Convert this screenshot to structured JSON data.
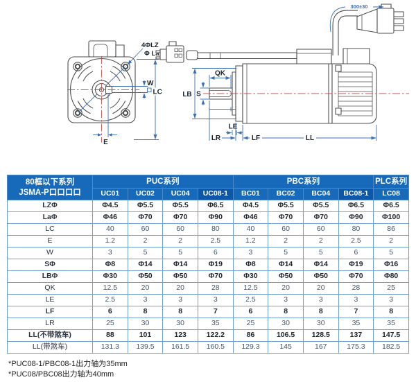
{
  "diagram": {
    "front": {
      "holes_label": "4ΦLZ",
      "bolt_circle_label": "Φ La",
      "key_width_label": "W",
      "frame_label": "LC",
      "offset_label": "E"
    },
    "side": {
      "key_length_label": "QK",
      "shaft_label": "S",
      "pilot_label": "LB",
      "le_label": "LE",
      "lr_label": "LR",
      "lf_label": "LF",
      "ll_label": "LL",
      "cable_label": "300±30"
    }
  },
  "table": {
    "corner_header": {
      "line1": "80框以下系列",
      "line2": "JSMA-P口口口口"
    },
    "groups": [
      {
        "label": "PUC系列",
        "span": 4
      },
      {
        "label": "PBC系列",
        "span": 4
      },
      {
        "label": "PLC系列",
        "span": 1
      }
    ],
    "columns": [
      {
        "label": "UC01",
        "dark": false
      },
      {
        "label": "UC02",
        "dark": false
      },
      {
        "label": "UC04",
        "dark": false
      },
      {
        "label": "UC08-1",
        "dark": true
      },
      {
        "label": "BC01",
        "dark": false
      },
      {
        "label": "BC02",
        "dark": false
      },
      {
        "label": "BC04",
        "dark": false
      },
      {
        "label": "BC08-1",
        "dark": true
      },
      {
        "label": "LC08",
        "dark": false
      }
    ],
    "rows": [
      {
        "label": "LZΦ",
        "strong": true,
        "values": [
          "Φ4.5",
          "Φ5.5",
          "Φ5.5",
          "Φ6.5",
          "Φ4.5",
          "Φ5.5",
          "Φ5.5",
          "Φ6.5",
          "Φ6.5"
        ]
      },
      {
        "label": "LaΦ",
        "strong": true,
        "values": [
          "Φ46",
          "Φ70",
          "Φ70",
          "Φ90",
          "Φ46",
          "Φ70",
          "Φ70",
          "Φ90",
          "Φ100"
        ]
      },
      {
        "label": "LC",
        "strong": false,
        "values": [
          "40",
          "60",
          "60",
          "80",
          "40",
          "60",
          "60",
          "80",
          "86"
        ]
      },
      {
        "label": "E",
        "strong": false,
        "values": [
          "1.2",
          "2",
          "2",
          "2.5",
          "1.2",
          "2",
          "2",
          "2.5",
          "2"
        ]
      },
      {
        "label": "W",
        "strong": false,
        "values": [
          "3",
          "5",
          "5",
          "6",
          "3",
          "5",
          "5",
          "6",
          "5"
        ]
      },
      {
        "label": "SΦ",
        "strong": true,
        "values": [
          "Φ8",
          "Φ14",
          "Φ14",
          "Φ19",
          "Φ8",
          "Φ14",
          "Φ14",
          "Φ19",
          "Φ16"
        ]
      },
      {
        "label": "LBΦ",
        "strong": true,
        "values": [
          "Φ30",
          "Φ50",
          "Φ50",
          "Φ70",
          "Φ30",
          "Φ50",
          "Φ50",
          "Φ70",
          "Φ80"
        ]
      },
      {
        "label": "QK",
        "strong": false,
        "values": [
          "12.5",
          "20",
          "20",
          "28",
          "12.5",
          "20",
          "20",
          "28",
          "25"
        ]
      },
      {
        "label": "LE",
        "strong": false,
        "values": [
          "2.5",
          "3",
          "3",
          "3",
          "2.5",
          "3",
          "3",
          "3",
          "3"
        ]
      },
      {
        "label": "LF",
        "strong": true,
        "values": [
          "6",
          "8",
          "8",
          "7",
          "6",
          "8",
          "8",
          "7",
          "8"
        ]
      },
      {
        "label": "LR",
        "strong": false,
        "values": [
          "25",
          "30",
          "30",
          "35",
          "25",
          "30",
          "30",
          "35",
          "35"
        ]
      },
      {
        "label": "LL(不带煞车)",
        "strong": true,
        "values": [
          "88",
          "101",
          "123",
          "122.2",
          "86",
          "106.5",
          "128.5",
          "137",
          "147.5"
        ]
      },
      {
        "label": "LL(带煞车)",
        "strong": false,
        "values": [
          "131.3",
          "139.5",
          "161.5",
          "160.5",
          "129.3",
          "145",
          "167",
          "175.3",
          "182.5"
        ]
      }
    ]
  },
  "footnotes": [
    "*PUC08-1/PBC08-1出力轴为35mm",
    "*PUC08/PBC08出力轴为40mm"
  ],
  "colors": {
    "header_blue": "#1769b9",
    "header_blue_dark": "#0d57a8",
    "grid_blue": "#6f9fd4",
    "cell_text": "#44566b",
    "cell_text_strong": "#20262e",
    "dim_blue": "#3a6fb5",
    "centerline_red": "#c0564c",
    "object_gray": "#4f4f4f"
  }
}
